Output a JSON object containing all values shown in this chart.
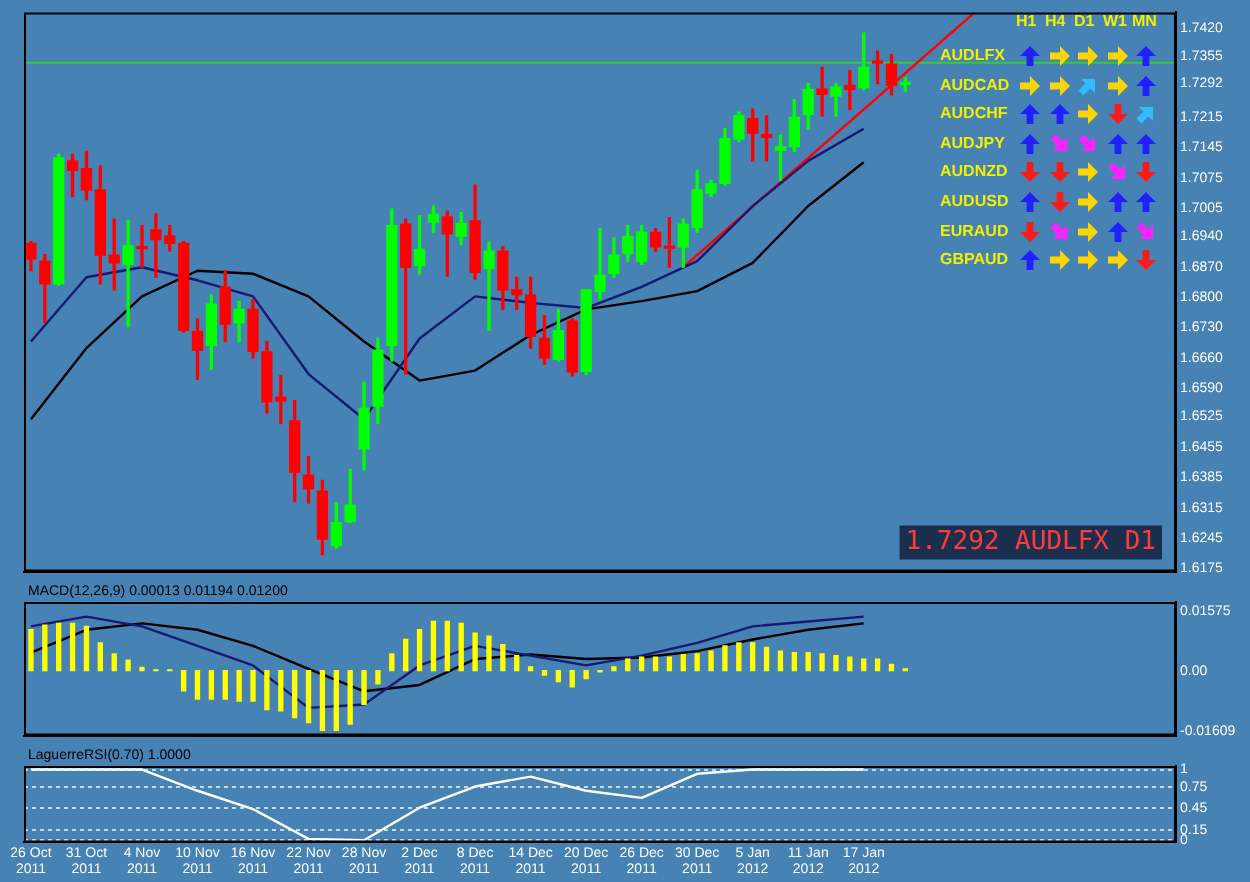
{
  "chart_data": [
    {
      "type": "candlestick",
      "categories": [
        "26 Oct 2011",
        null,
        null,
        null,
        "31 Oct 2011",
        null,
        null,
        null,
        "4 Nov 2011",
        null,
        null,
        null,
        "10 Nov 2011",
        null,
        null,
        null,
        "16 Nov 2011",
        null,
        null,
        null,
        "22 Nov 2011",
        null,
        null,
        null,
        "28 Nov 2011",
        null,
        null,
        null,
        "2 Dec 2011",
        null,
        null,
        null,
        "8 Dec 2011",
        null,
        null,
        null,
        "14 Dec 2011",
        null,
        null,
        null,
        "20 Dec 2011",
        null,
        null,
        null,
        "26 Dec 2011",
        null,
        null,
        null,
        "30 Dec 2011",
        null,
        null,
        null,
        "5 Jan 2012",
        null,
        null,
        null,
        "11 Jan 2012",
        null,
        null,
        null,
        "17 Jan 2012",
        null,
        null,
        null,
        null,
        null,
        null,
        null,
        null,
        null,
        null,
        null,
        null,
        null,
        null,
        null,
        null,
        null,
        null,
        null,
        null,
        null,
        null
      ],
      "ohlc": [
        [
          1.6924,
          1.6928,
          1.6861,
          1.6888
        ],
        [
          1.6883,
          1.6898,
          1.6742,
          1.6831
        ],
        [
          1.6831,
          1.7129,
          1.6828,
          1.7121
        ],
        [
          1.7114,
          1.7129,
          1.7032,
          1.7092
        ],
        [
          1.7096,
          1.7136,
          1.7025,
          1.7047
        ],
        [
          1.7047,
          1.7102,
          1.6831,
          1.6897
        ],
        [
          1.6897,
          1.698,
          1.6817,
          1.6879
        ],
        [
          1.6876,
          1.6977,
          1.6732,
          1.6918
        ],
        [
          1.6913,
          1.6965,
          1.6869,
          1.6912
        ],
        [
          1.6955,
          1.6992,
          1.6846,
          1.6933
        ],
        [
          1.6941,
          1.6965,
          1.6906,
          1.6924
        ],
        [
          1.6924,
          1.6928,
          1.672,
          1.6724
        ],
        [
          1.6721,
          1.675,
          1.6611,
          1.6678
        ],
        [
          1.6689,
          1.6805,
          1.6634,
          1.6784
        ],
        [
          1.6823,
          1.6861,
          1.6698,
          1.6738
        ],
        [
          1.6741,
          1.679,
          1.6698,
          1.6772
        ],
        [
          1.6772,
          1.6794,
          1.666,
          1.6675
        ],
        [
          1.6674,
          1.6698,
          1.6534,
          1.6559
        ],
        [
          1.657,
          1.6619,
          1.6509,
          1.6561
        ],
        [
          1.6515,
          1.6562,
          1.6329,
          1.6397
        ],
        [
          1.639,
          1.6433,
          1.6326,
          1.6359
        ],
        [
          1.6353,
          1.6378,
          1.6207,
          1.6243
        ],
        [
          1.6228,
          1.6326,
          1.6222,
          1.6281
        ],
        [
          1.6283,
          1.6403,
          1.6281,
          1.6321
        ],
        [
          1.6451,
          1.6604,
          1.6403,
          1.6544
        ],
        [
          1.6549,
          1.6705,
          1.6509,
          1.6678
        ],
        [
          1.6689,
          1.7003,
          1.6653,
          1.6965
        ],
        [
          1.6968,
          1.698,
          1.6623,
          1.6869
        ],
        [
          1.6873,
          1.6988,
          1.6854,
          1.691
        ],
        [
          1.6973,
          1.701,
          1.695,
          1.6991
        ],
        [
          1.6985,
          1.6998,
          1.6849,
          1.6946
        ],
        [
          1.6941,
          1.6995,
          1.6921,
          1.697
        ],
        [
          1.6976,
          1.7058,
          1.6842,
          1.6857
        ],
        [
          1.6866,
          1.6927,
          1.6724,
          1.6906
        ],
        [
          1.6906,
          1.6916,
          1.6772,
          1.6817
        ],
        [
          1.6817,
          1.6846,
          1.6772,
          1.6806
        ],
        [
          1.6805,
          1.6846,
          1.6683,
          1.671
        ],
        [
          1.6705,
          1.6757,
          1.6646,
          1.666
        ],
        [
          1.6657,
          1.6772,
          1.6653,
          1.6723
        ],
        [
          1.6745,
          1.675,
          1.6619,
          1.6628
        ],
        [
          1.6629,
          1.6817,
          1.6623,
          1.6817
        ],
        [
          1.6814,
          1.6958,
          1.6794,
          1.6851
        ],
        [
          1.6855,
          1.6936,
          1.6846,
          1.6897
        ],
        [
          1.6901,
          1.6965,
          1.6883,
          1.694
        ],
        [
          1.6883,
          1.6965,
          1.6876,
          1.695
        ],
        [
          1.6949,
          1.6958,
          1.6906,
          1.6916
        ],
        [
          1.6915,
          1.6983,
          1.6869,
          1.6913
        ],
        [
          1.6916,
          1.698,
          1.6869,
          1.6968
        ],
        [
          1.6961,
          1.7092,
          1.695,
          1.7047
        ],
        [
          1.704,
          1.7069,
          1.7032,
          1.7061
        ],
        [
          1.7062,
          1.7188,
          1.7058,
          1.7165
        ],
        [
          1.7165,
          1.7226,
          1.7159,
          1.7218
        ],
        [
          1.7211,
          1.7233,
          1.7114,
          1.7178
        ],
        [
          1.7175,
          1.7218,
          1.7114,
          1.7168
        ],
        [
          1.7138,
          1.7173,
          1.7069,
          1.7147
        ],
        [
          1.7147,
          1.7255,
          1.7136,
          1.7214
        ],
        [
          1.7221,
          1.7292,
          1.7188,
          1.7278
        ],
        [
          1.7279,
          1.733,
          1.7218,
          1.7267
        ],
        [
          1.7263,
          1.7292,
          1.7218,
          1.7284
        ],
        [
          1.7288,
          1.7322,
          1.7233,
          1.7279
        ],
        [
          1.7282,
          1.7408,
          1.7278,
          1.733
        ],
        [
          1.7343,
          1.7367,
          1.7292,
          1.7339
        ],
        [
          1.7337,
          1.7359,
          1.7266,
          1.7288
        ],
        [
          1.729,
          1.7305,
          1.7275,
          1.7292
        ],
        null,
        null,
        null,
        null,
        null,
        null,
        null,
        null,
        null,
        null,
        null,
        null,
        null,
        null,
        null,
        null,
        null,
        null,
        null
      ],
      "colors": [
        "#ff0000",
        "#ff0000",
        "#00ff00",
        "#ff0000",
        "#ff0000",
        "#ff0000",
        "#ff0000",
        "#00ff00",
        "#ff0000",
        "#ff0000",
        "#ff0000",
        "#ff0000",
        "#ff0000",
        "#00ff00",
        "#ff0000",
        "#00ff00",
        "#ff0000",
        "#ff0000",
        "#ff0000",
        "#ff0000",
        "#ff0000",
        "#ff0000",
        "#00ff00",
        "#00ff00",
        "#00ff00",
        "#00ff00",
        "#00ff00",
        "#ff0000",
        "#00ff00",
        "#00ff00",
        "#ff0000",
        "#00ff00",
        "#ff0000",
        "#00ff00",
        "#ff0000",
        "#ff0000",
        "#ff0000",
        "#ff0000",
        "#00ff00",
        "#ff0000",
        "#00ff00",
        "#00ff00",
        "#00ff00",
        "#00ff00",
        "#00ff00",
        "#ff0000",
        "#ff0000",
        "#00ff00",
        "#00ff00",
        "#00ff00",
        "#00ff00",
        "#00ff00",
        "#ff0000",
        "#ff0000",
        "#00ff00",
        "#00ff00",
        "#00ff00",
        "#ff0000",
        "#00ff00",
        "#ff0000",
        "#00ff00",
        "#ff0000",
        "#ff0000",
        "#00ff00",
        null,
        null,
        null,
        null,
        null,
        null,
        null,
        null,
        null,
        null,
        null,
        null,
        null,
        null,
        null,
        null,
        null,
        null,
        null
      ],
      "series": [
        {
          "type": "line",
          "color": "#191970",
          "x": [
            "26 Oct 2011",
            "31 Oct 2011",
            "4 Nov 2011",
            "10 Nov 2011",
            "16 Nov 2011",
            "22 Nov 2011",
            "28 Nov 2011",
            "2 Dec 2011",
            "8 Dec 2011",
            "14 Dec 2011",
            "20 Dec 2011",
            "26 Dec 2011",
            "30 Dec 2011",
            "5 Jan 2012",
            "11 Jan 2012",
            "17 Jan 2012"
          ],
          "values": [
            1.6698,
            1.6846,
            1.6869,
            1.6839,
            1.6802,
            1.6623,
            1.6519,
            1.6705,
            1.6802,
            1.6787,
            1.6775,
            1.6824,
            1.6883,
            1.701,
            1.7114,
            1.7188
          ]
        },
        {
          "type": "line",
          "color": "#000000",
          "x": [
            "26 Oct 2011",
            "31 Oct 2011",
            "4 Nov 2011",
            "10 Nov 2011",
            "16 Nov 2011",
            "22 Nov 2011",
            "28 Nov 2011",
            "2 Dec 2011",
            "8 Dec 2011",
            "14 Dec 2011",
            "20 Dec 2011",
            "26 Dec 2011",
            "30 Dec 2011",
            "5 Jan 2012",
            "11 Jan 2012",
            "17 Jan 2012"
          ],
          "values": [
            1.6519,
            1.6683,
            1.6802,
            1.6861,
            1.6854,
            1.6802,
            1.6698,
            1.6608,
            1.6631,
            1.6713,
            1.6772,
            1.6791,
            1.6814,
            1.6879,
            1.701,
            1.7111
          ]
        },
        {
          "type": "line",
          "color": "#ff0000",
          "values": [
            null,
            null,
            null,
            null,
            null,
            null,
            null,
            null,
            null,
            null,
            null,
            null,
            null,
            null,
            null,
            null,
            null,
            null,
            null,
            null,
            null,
            null,
            null,
            null,
            null,
            null,
            null,
            null,
            null,
            null,
            null,
            null,
            null,
            null,
            null,
            null,
            null,
            null,
            null,
            null,
            null,
            null,
            null,
            null,
            null,
            null,
            null,
            1.6869,
            null,
            null,
            null,
            null,
            null,
            null,
            null,
            null,
            null,
            null,
            null,
            null,
            null,
            null,
            null,
            null,
            null,
            null,
            null,
            null,
            1.7456,
            null,
            null,
            null,
            null,
            null,
            null,
            null,
            null,
            null,
            null,
            null,
            null,
            null,
            null
          ]
        }
      ],
      "ylim": [
        1.6168,
        1.7456
      ],
      "yticks": [
        {
          "value": 1.742,
          "label": "1.7420"
        },
        {
          "value": 1.7355,
          "label": "1.7355"
        },
        {
          "value": 1.7292,
          "label": "1.7292"
        },
        {
          "value": 1.7215,
          "label": "1.7215"
        },
        {
          "value": 1.7145,
          "label": "1.7145"
        },
        {
          "value": 1.7075,
          "label": "1.7075"
        },
        {
          "value": 1.7005,
          "label": "1.7005"
        },
        {
          "value": 1.694,
          "label": "1.6940"
        },
        {
          "value": 1.687,
          "label": "1.6870"
        },
        {
          "value": 1.68,
          "label": "1.6800"
        },
        {
          "value": 1.673,
          "label": "1.6730"
        },
        {
          "value": 1.666,
          "label": "1.6660"
        },
        {
          "value": 1.659,
          "label": "1.6590"
        },
        {
          "value": 1.6525,
          "label": "1.6525"
        },
        {
          "value": 1.6455,
          "label": "1.6455"
        },
        {
          "value": 1.6385,
          "label": "1.6385"
        },
        {
          "value": 1.6315,
          "label": "1.6315"
        },
        {
          "value": 1.6245,
          "label": "1.6245"
        },
        {
          "value": 1.6175,
          "label": "1.6175"
        }
      ],
      "ref_lines": [
        {
          "axis": "y",
          "value": 1.734,
          "color": "#33cc33"
        }
      ],
      "annotations": [
        "1.7292 AUDLFX D1"
      ],
      "tick_labels": "y"
    },
    {
      "type": "bar",
      "title": "MACD(12,26,9) 0.00013 0.01194 0.01200",
      "categories": [
        "26 Oct 2011",
        null,
        null,
        null,
        "31 Oct 2011",
        null,
        null,
        null,
        "4 Nov 2011",
        null,
        null,
        null,
        "10 Nov 2011",
        null,
        null,
        null,
        "16 Nov 2011",
        null,
        null,
        null,
        "22 Nov 2011",
        null,
        null,
        null,
        "28 Nov 2011",
        null,
        null,
        null,
        "2 Dec 2011",
        null,
        null,
        null,
        "8 Dec 2011",
        null,
        null,
        null,
        "14 Dec 2011",
        null,
        null,
        null,
        "20 Dec 2011",
        null,
        null,
        null,
        "26 Dec 2011",
        null,
        null,
        null,
        "30 Dec 2011",
        null,
        null,
        null,
        "5 Jan 2012",
        null,
        null,
        null,
        "11 Jan 2012",
        null,
        null,
        null,
        "17 Jan 2012",
        null,
        null,
        null,
        null,
        null,
        null,
        null,
        null,
        null,
        null,
        null,
        null,
        null,
        null,
        null,
        null,
        null,
        null,
        null,
        null,
        null,
        null
      ],
      "series": [
        {
          "color": "#ffff00",
          "values": [
            0.0109,
            0.0121,
            0.0126,
            0.0126,
            0.0118,
            0.0074,
            0.0045,
            0.0028,
            0.0009,
            0.0002,
            0.0002,
            -0.0054,
            -0.0076,
            -0.0076,
            -0.0076,
            -0.0081,
            -0.0081,
            -0.0104,
            -0.0107,
            -0.0125,
            -0.0138,
            -0.0159,
            -0.0159,
            -0.0142,
            -0.009,
            -0.0035,
            0.0045,
            0.0083,
            0.0109,
            0.0131,
            0.0131,
            0.0126,
            0.01,
            0.0092,
            0.0069,
            0.004,
            0.001,
            -0.0012,
            -0.0029,
            -0.0043,
            -0.0021,
            -0.0003,
            0.001,
            0.0031,
            0.0036,
            0.0036,
            0.0036,
            0.0043,
            0.0045,
            0.0052,
            0.0066,
            0.0074,
            0.0074,
            0.0062,
            0.0052,
            0.0048,
            0.0048,
            0.0045,
            0.004,
            0.0036,
            0.0031,
            0.0031,
            0.0017,
            0.0005,
            null,
            null,
            null,
            null,
            null,
            null,
            null,
            null,
            null,
            null,
            null,
            null,
            null,
            null,
            null,
            null,
            null,
            null,
            null
          ]
        },
        {
          "type": "line",
          "color": "#191970",
          "x": [
            "26 Oct 2011",
            "31 Oct 2011",
            "4 Nov 2011",
            "10 Nov 2011",
            "16 Nov 2011",
            "22 Nov 2011",
            "28 Nov 2011",
            "2 Dec 2011",
            "8 Dec 2011",
            "14 Dec 2011",
            "20 Dec 2011",
            "26 Dec 2011",
            "30 Dec 2011",
            "5 Jan 2012",
            "11 Jan 2012",
            "17 Jan 2012"
          ],
          "values": [
            0.0118,
            0.0144,
            0.0118,
            0.0066,
            0.0014,
            -0.0099,
            -0.009,
            0.0014,
            0.0066,
            0.004,
            0.0014,
            0.004,
            0.0074,
            0.0118,
            0.0131,
            0.0144
          ]
        },
        {
          "type": "line",
          "color": "#000000",
          "x": [
            "26 Oct 2011",
            "31 Oct 2011",
            "4 Nov 2011",
            "10 Nov 2011",
            "16 Nov 2011",
            "22 Nov 2011",
            "28 Nov 2011",
            "2 Dec 2011",
            "8 Dec 2011",
            "14 Dec 2011",
            "20 Dec 2011",
            "26 Dec 2011",
            "30 Dec 2011",
            "5 Jan 2012",
            "11 Jan 2012",
            "17 Jan 2012"
          ],
          "values": [
            0.0048,
            0.0109,
            0.0126,
            0.0109,
            0.0066,
            0.0005,
            -0.0055,
            -0.0038,
            0.0031,
            0.0043,
            0.0031,
            0.0035,
            0.0052,
            0.0083,
            0.0109,
            0.0126
          ]
        }
      ],
      "ylim": [
        -0.0173,
        0.0183
      ],
      "yticks": [
        0.01575,
        {
          "value": 0,
          "label": "0.00"
        },
        -0.01609
      ],
      "tick_labels": "y"
    },
    {
      "type": "line",
      "title": "LaguerreRSI(0.70) 1.0000",
      "categories": [
        "26 Oct 2011",
        null,
        null,
        null,
        "31 Oct 2011",
        null,
        null,
        null,
        "4 Nov 2011",
        null,
        null,
        null,
        "10 Nov 2011",
        null,
        null,
        null,
        "16 Nov 2011",
        null,
        null,
        null,
        "22 Nov 2011",
        null,
        null,
        null,
        "28 Nov 2011",
        null,
        null,
        null,
        "2 Dec 2011",
        null,
        null,
        null,
        "8 Dec 2011",
        null,
        null,
        null,
        "14 Dec 2011",
        null,
        null,
        null,
        "20 Dec 2011",
        null,
        null,
        null,
        "26 Dec 2011",
        null,
        null,
        null,
        "30 Dec 2011",
        null,
        null,
        null,
        "5 Jan 2012",
        null,
        null,
        null,
        "11 Jan 2012",
        null,
        null,
        null,
        "17 Jan 2012",
        null,
        null,
        null,
        null,
        null,
        null,
        null,
        null,
        null,
        null,
        null,
        null,
        null,
        null,
        null,
        null,
        null,
        null,
        null,
        null,
        null,
        null
      ],
      "series": [
        {
          "color": "#ffffff",
          "x": [
            "26 Oct 2011",
            "31 Oct 2011",
            "4 Nov 2011",
            "10 Nov 2011",
            "16 Nov 2011",
            "22 Nov 2011",
            "28 Nov 2011",
            "2 Dec 2011",
            "8 Dec 2011",
            "14 Dec 2011",
            "20 Dec 2011",
            "26 Dec 2011",
            "30 Dec 2011",
            "5 Jan 2012",
            "11 Jan 2012",
            "17 Jan 2012"
          ],
          "values": [
            1,
            1,
            1,
            0.7,
            0.44,
            0.02,
            0,
            0.46,
            0.76,
            0.9,
            0.7,
            0.6,
            0.94,
            1,
            1,
            1
          ]
        }
      ],
      "ylim": [
        -0.03,
        1.05
      ],
      "yticks": [
        1,
        0.75,
        0.45,
        0.15,
        0
      ],
      "grid": "y"
    },
    {
      "type": "other",
      "categories": [
        "H1",
        "H4",
        "D1",
        "W1",
        "MN"
      ],
      "y_categories": [
        "AUDLFX",
        "AUDCAD",
        "AUDCHF",
        "AUDJPY",
        "AUDNZD",
        "AUDUSD",
        "EURAUD",
        "GBPAUD"
      ]
    }
  ]
}
